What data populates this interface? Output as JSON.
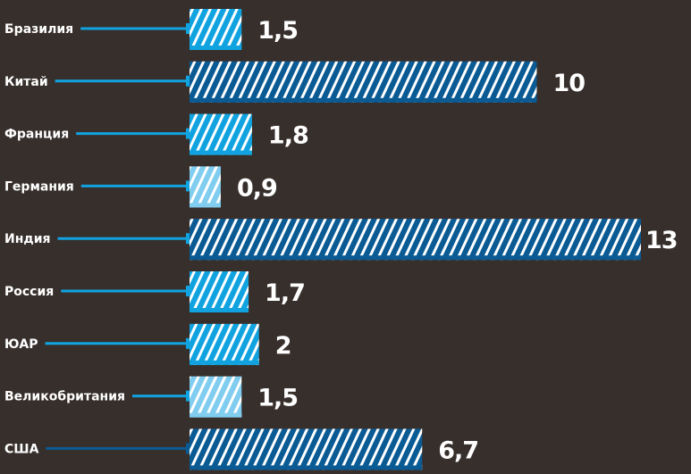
{
  "chart_data": {
    "type": "bar",
    "orientation": "horizontal",
    "title": "",
    "xlabel": "",
    "ylabel": "",
    "xlim": [
      0,
      13
    ],
    "grid": false,
    "categories": [
      "Бразилия",
      "Китай",
      "Франция",
      "Германия",
      "Индия",
      "Россия",
      "ЮАР",
      "Великобритания",
      "США"
    ],
    "values": [
      1.5,
      10,
      1.8,
      0.9,
      13,
      1.7,
      2,
      1.5,
      6.7
    ],
    "value_labels": [
      "1,5",
      "10",
      "1,8",
      "0,9",
      "13",
      "1,7",
      "2",
      "1,5",
      "6,7"
    ],
    "bar_shades": [
      "mid",
      "dark",
      "mid",
      "light",
      "dark",
      "mid",
      "mid",
      "light",
      "dark"
    ],
    "colors": {
      "background": "#372f2c",
      "dark": "#0a5a94",
      "mid": "#10a3e0",
      "light": "#80cdf0",
      "hatch": "#ffffff"
    }
  }
}
